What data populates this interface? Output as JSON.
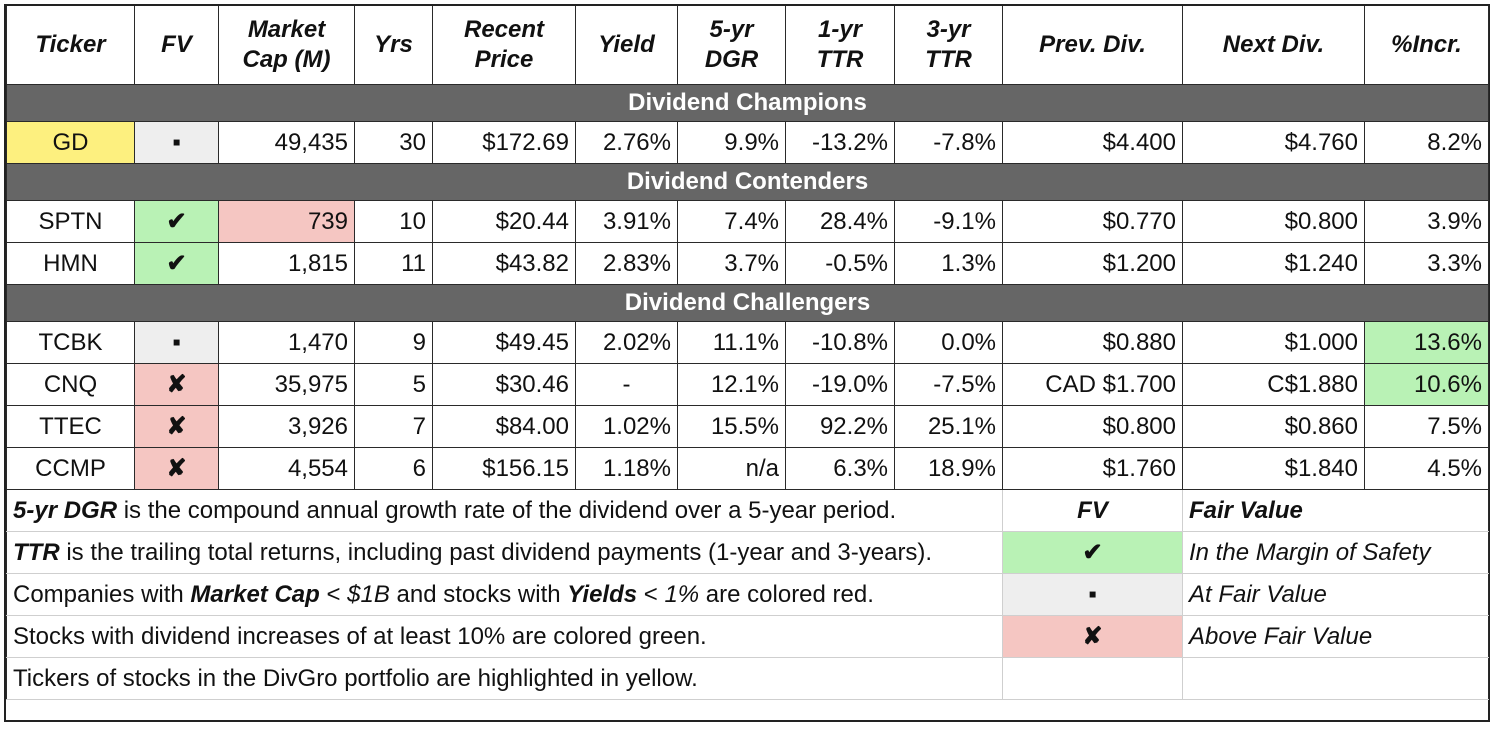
{
  "headers": {
    "ticker": "Ticker",
    "fv": "FV",
    "mcap1": "Market",
    "mcap2": "Cap (M)",
    "yrs": "Yrs",
    "price1": "Recent",
    "price2": "Price",
    "yield": "Yield",
    "dgr1": "5-yr",
    "dgr2": "DGR",
    "ttr1_1": "1-yr",
    "ttr1_2": "TTR",
    "ttr3_1": "3-yr",
    "ttr3_2": "TTR",
    "prev": "Prev. Div.",
    "next": "Next Div.",
    "incr": "%Incr."
  },
  "sections": {
    "champions": "Dividend Champions",
    "contenders": "Dividend Contenders",
    "challengers": "Dividend Challengers"
  },
  "rows": {
    "gd": {
      "ticker": "GD",
      "fv": "▪",
      "mcap": "49,435",
      "yrs": "30",
      "price": "$172.69",
      "yield": "2.76%",
      "dgr": "9.9%",
      "ttr1": "-13.2%",
      "ttr3": "-7.8%",
      "prev": "$4.400",
      "next": "$4.760",
      "incr": "8.2%"
    },
    "sptn": {
      "ticker": "SPTN",
      "fv": "✔",
      "mcap": "739",
      "yrs": "10",
      "price": "$20.44",
      "yield": "3.91%",
      "dgr": "7.4%",
      "ttr1": "28.4%",
      "ttr3": "-9.1%",
      "prev": "$0.770",
      "next": "$0.800",
      "incr": "3.9%"
    },
    "hmn": {
      "ticker": "HMN",
      "fv": "✔",
      "mcap": "1,815",
      "yrs": "11",
      "price": "$43.82",
      "yield": "2.83%",
      "dgr": "3.7%",
      "ttr1": "-0.5%",
      "ttr3": "1.3%",
      "prev": "$1.200",
      "next": "$1.240",
      "incr": "3.3%"
    },
    "tcbk": {
      "ticker": "TCBK",
      "fv": "▪",
      "mcap": "1,470",
      "yrs": "9",
      "price": "$49.45",
      "yield": "2.02%",
      "dgr": "11.1%",
      "ttr1": "-10.8%",
      "ttr3": "0.0%",
      "prev": "$0.880",
      "next": "$1.000",
      "incr": "13.6%"
    },
    "cnq": {
      "ticker": "CNQ",
      "fv": "✘",
      "mcap": "35,975",
      "yrs": "5",
      "price": "$30.46",
      "yield": "-",
      "dgr": "12.1%",
      "ttr1": "-19.0%",
      "ttr3": "-7.5%",
      "prev": "CAD $1.700",
      "next": "C$1.880",
      "incr": "10.6%"
    },
    "ttec": {
      "ticker": "TTEC",
      "fv": "✘",
      "mcap": "3,926",
      "yrs": "7",
      "price": "$84.00",
      "yield": "1.02%",
      "dgr": "15.5%",
      "ttr1": "92.2%",
      "ttr3": "25.1%",
      "prev": "$0.800",
      "next": "$0.860",
      "incr": "7.5%"
    },
    "ccmp": {
      "ticker": "CCMP",
      "fv": "✘",
      "mcap": "4,554",
      "yrs": "6",
      "price": "$156.15",
      "yield": "1.18%",
      "dgr": "n/a",
      "ttr1": "6.3%",
      "ttr3": "18.9%",
      "prev": "$1.760",
      "next": "$1.840",
      "incr": "4.5%"
    }
  },
  "legend": {
    "l1_bold": "5-yr DGR",
    "l1_rest": " is the compound annual growth rate of the dividend over a 5-year period.",
    "l2_bold": "TTR",
    "l2_rest": " is the trailing total returns, including past dividend payments (1-year and 3-years).",
    "l3_a": "Companies with ",
    "l3_b": "Market Cap",
    "l3_c": " < ",
    "l3_d": "$1B",
    "l3_e": " and stocks with ",
    "l3_f": "Yields",
    "l3_g": " < ",
    "l3_h": "1%",
    "l3_i": " are colored red.",
    "l4": "Stocks with dividend increases of at least 10% are colored green.",
    "l5": "Tickers of stocks in the DivGro portfolio are highlighted in yellow.",
    "fv_head": "FV",
    "fv_head_desc": "Fair Value",
    "sym_margin": "✔",
    "desc_margin": "In the Margin of Safety",
    "sym_fair": "▪",
    "desc_fair": "At Fair Value",
    "sym_above": "✘",
    "desc_above": "Above Fair Value"
  },
  "colors": {
    "section_bg": "#666666",
    "yellow": "#fdf07f",
    "green": "#b9f2b5",
    "red": "#f5c6c2",
    "gray": "#eeeeee"
  }
}
